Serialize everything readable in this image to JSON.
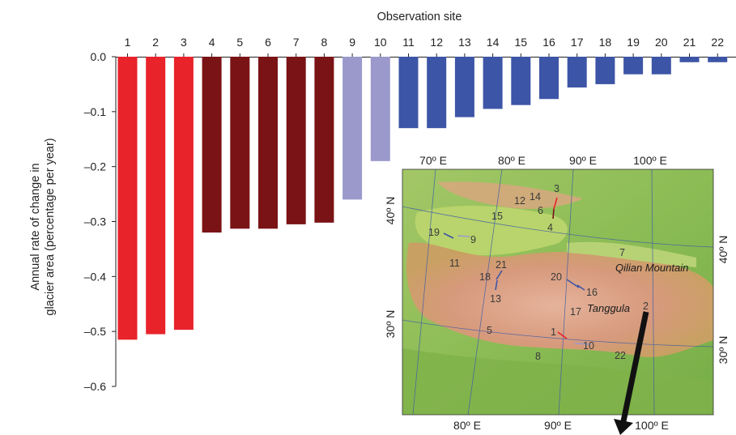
{
  "chart_data": {
    "type": "bar",
    "title": "",
    "xlabel": "Observation site",
    "ylabel_line1": "Annual rate of change in",
    "ylabel_line2": "glacier area (percentage per year)",
    "categories": [
      "1",
      "2",
      "3",
      "4",
      "5",
      "6",
      "7",
      "8",
      "9",
      "10",
      "11",
      "12",
      "13",
      "14",
      "15",
      "16",
      "17",
      "18",
      "19",
      "20",
      "21",
      "22"
    ],
    "values": [
      -0.515,
      -0.505,
      -0.497,
      -0.32,
      -0.313,
      -0.313,
      -0.305,
      -0.302,
      -0.26,
      -0.19,
      -0.13,
      -0.13,
      -0.11,
      -0.095,
      -0.088,
      -0.077,
      -0.056,
      -0.05,
      -0.032,
      -0.032,
      -0.01,
      -0.01
    ],
    "groups": [
      "red",
      "red",
      "red",
      "darkred",
      "darkred",
      "darkred",
      "darkred",
      "darkred",
      "lavender",
      "lavender",
      "blue",
      "blue",
      "blue",
      "blue",
      "blue",
      "blue",
      "blue",
      "blue",
      "blue",
      "blue",
      "blue",
      "blue"
    ],
    "colors": {
      "red": "#e8232a",
      "darkred": "#7a1316",
      "lavender": "#9b99cc",
      "blue": "#3d55a6"
    },
    "ylim": [
      -0.6,
      0.0
    ],
    "yticks": [
      0.0,
      -0.1,
      -0.2,
      -0.3,
      -0.4,
      -0.5,
      -0.6
    ],
    "ytick_labels": [
      "0.0",
      "–0.1",
      "–0.2",
      "–0.3",
      "–0.4",
      "–0.5",
      "–0.6"
    ],
    "xaxis_position": "top",
    "grid": false,
    "legend": "none"
  },
  "inset_map": {
    "top_lon_labels": [
      "70º E",
      "80º E",
      "90º E",
      "100º E"
    ],
    "bottom_lon_labels": [
      "80º E",
      "90º E",
      "100º E"
    ],
    "left_lat_labels": [
      "40º N",
      "30º N"
    ],
    "right_lat_labels": [
      "40º N",
      "30º N"
    ],
    "place_names": [
      "Qilian Mountain",
      "Tanggula"
    ],
    "site_labels": [
      "1",
      "2",
      "3",
      "4",
      "5",
      "6",
      "7",
      "8",
      "9",
      "10",
      "11",
      "12",
      "13",
      "14",
      "15",
      "16",
      "17",
      "18",
      "19",
      "20",
      "21",
      "22"
    ]
  }
}
